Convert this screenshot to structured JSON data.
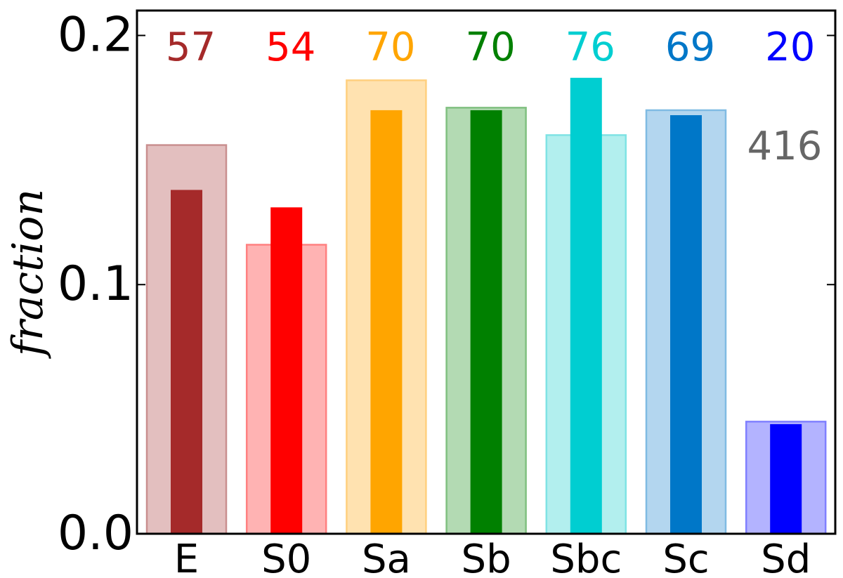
{
  "chart_data": {
    "type": "bar",
    "title": "",
    "xlabel": "",
    "ylabel": "fraction",
    "ylim": [
      0.0,
      0.21
    ],
    "yticks": [
      "0.0",
      "0.1",
      "0.2"
    ],
    "grid": false,
    "categories": [
      "E",
      "S0",
      "Sa",
      "Sb",
      "Sbc",
      "Sc",
      "Sd"
    ],
    "series": [
      {
        "values": [
          0.156,
          0.116,
          0.182,
          0.171,
          0.16,
          0.17,
          0.045
        ]
      },
      {
        "values": [
          0.138,
          0.131,
          0.17,
          0.17,
          0.183,
          0.168,
          0.044
        ]
      }
    ],
    "counts": [
      "57",
      "54",
      "70",
      "70",
      "76",
      "69",
      "20"
    ],
    "total": "416",
    "colors": {
      "solid": [
        "#a52a2a",
        "#ff0000",
        "#ffa500",
        "#008000",
        "#00ced1",
        "#0077c8",
        "#0000ff"
      ],
      "wide_fill": [
        "#e3bfbf",
        "#ffb3b3",
        "#ffe2b0",
        "#b3dab3",
        "#b2efee",
        "#b3d6ef",
        "#b3b3ff"
      ],
      "wide_edge": [
        "#c98f8f",
        "#ff8080",
        "#ffd07f",
        "#80c080",
        "#7fe3e4",
        "#80bbe3",
        "#8080ff"
      ],
      "total": "#666666"
    }
  }
}
